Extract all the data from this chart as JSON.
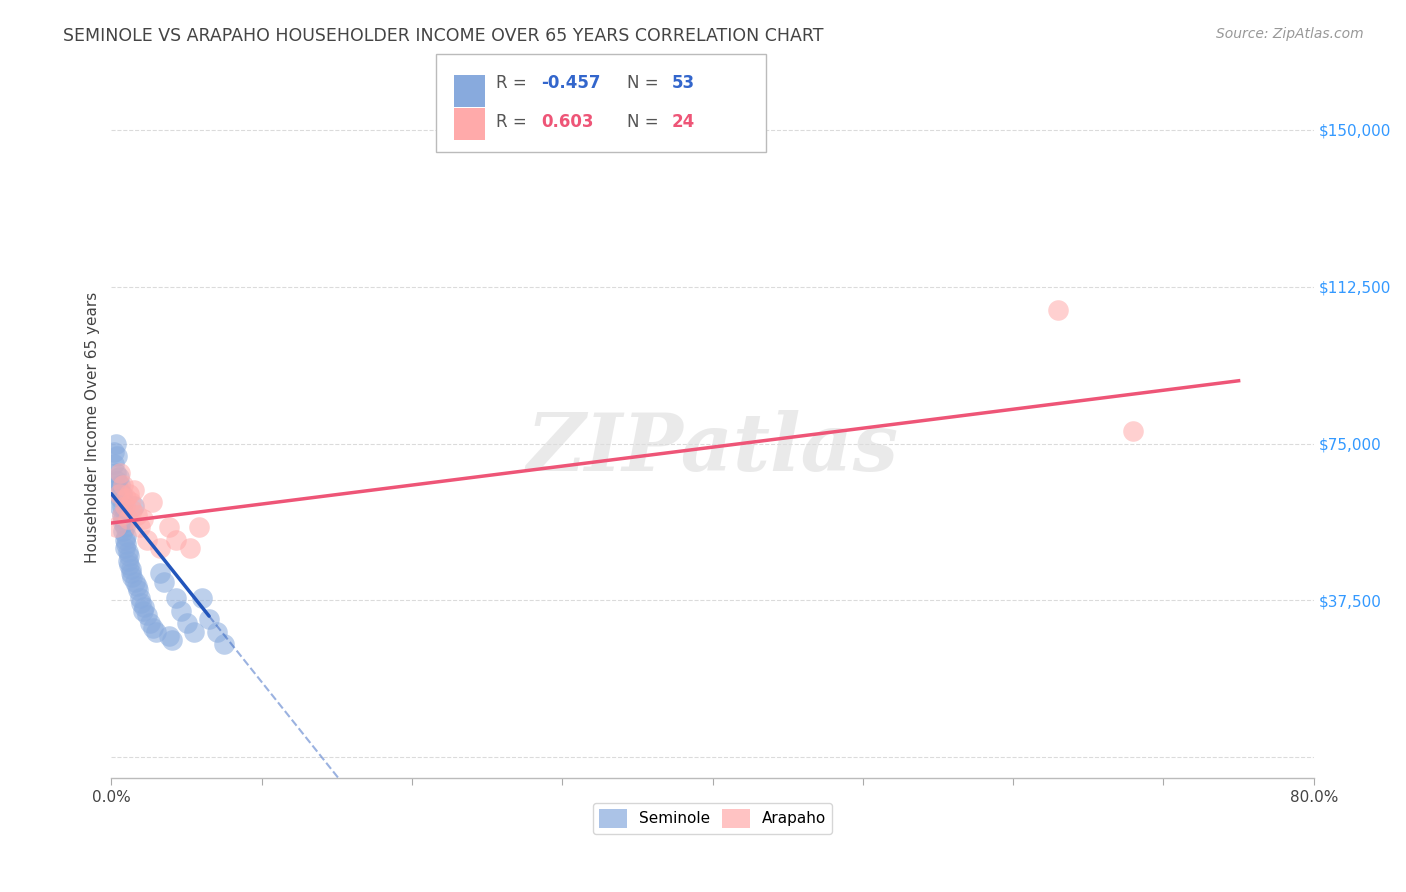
{
  "title": "SEMINOLE VS ARAPAHO HOUSEHOLDER INCOME OVER 65 YEARS CORRELATION CHART",
  "source": "Source: ZipAtlas.com",
  "ylabel": "Householder Income Over 65 years",
  "xlim": [
    0.0,
    0.8
  ],
  "ylim": [
    -5000,
    162500
  ],
  "yticks": [
    0,
    37500,
    75000,
    112500,
    150000
  ],
  "ytick_labels": [
    "",
    "$37,500",
    "$75,000",
    "$112,500",
    "$150,000"
  ],
  "xtick_positions": [
    0.0,
    0.1,
    0.2,
    0.3,
    0.4,
    0.5,
    0.6,
    0.7,
    0.8
  ],
  "seminole_R": -0.457,
  "seminole_N": 53,
  "arapaho_R": 0.603,
  "arapaho_N": 24,
  "seminole_color": "#88AADD",
  "arapaho_color": "#FFAAAA",
  "seminole_line_color": "#2255BB",
  "arapaho_line_color": "#EE5577",
  "background_color": "#FFFFFF",
  "grid_color": "#CCCCCC",
  "title_color": "#444444",
  "axis_label_color": "#444444",
  "ytick_color": "#3399FF",
  "watermark_color": "#DDDDDD",
  "watermark_text": "ZIPatlas",
  "legend_color_blue": "#3366CC",
  "legend_color_pink": "#EE5577",
  "seminole_x": [
    0.002,
    0.002,
    0.003,
    0.003,
    0.004,
    0.004,
    0.005,
    0.005,
    0.005,
    0.006,
    0.006,
    0.007,
    0.007,
    0.007,
    0.008,
    0.008,
    0.008,
    0.009,
    0.009,
    0.009,
    0.01,
    0.01,
    0.011,
    0.011,
    0.012,
    0.012,
    0.013,
    0.013,
    0.014,
    0.015,
    0.016,
    0.017,
    0.018,
    0.019,
    0.02,
    0.021,
    0.022,
    0.024,
    0.026,
    0.028,
    0.03,
    0.032,
    0.035,
    0.038,
    0.04,
    0.043,
    0.046,
    0.05,
    0.055,
    0.06,
    0.065,
    0.07,
    0.075
  ],
  "seminole_y": [
    70000,
    73000,
    75000,
    68000,
    66000,
    72000,
    64000,
    67000,
    60000,
    65000,
    62000,
    63000,
    58000,
    60000,
    56000,
    54000,
    57000,
    52000,
    55000,
    50000,
    51000,
    53000,
    49000,
    47000,
    48000,
    46000,
    44000,
    45000,
    43000,
    60000,
    42000,
    41000,
    40000,
    38000,
    37000,
    35000,
    36000,
    34000,
    32000,
    31000,
    30000,
    44000,
    42000,
    29000,
    28000,
    38000,
    35000,
    32000,
    30000,
    38000,
    33000,
    30000,
    27000
  ],
  "arapaho_x": [
    0.003,
    0.005,
    0.006,
    0.007,
    0.008,
    0.009,
    0.01,
    0.011,
    0.012,
    0.013,
    0.014,
    0.015,
    0.017,
    0.019,
    0.021,
    0.024,
    0.027,
    0.032,
    0.038,
    0.043,
    0.052,
    0.058,
    0.63,
    0.68
  ],
  "arapaho_y": [
    55000,
    63000,
    68000,
    58000,
    65000,
    60000,
    62000,
    57000,
    63000,
    61000,
    59000,
    64000,
    58000,
    55000,
    57000,
    52000,
    61000,
    50000,
    55000,
    52000,
    50000,
    55000,
    107000,
    78000
  ],
  "sem_line_x0": 0.0,
  "sem_line_x1": 0.065,
  "sem_line_x_dash_end": 0.8,
  "sem_line_y_intercept": 63000,
  "sem_line_slope": -450000,
  "ara_line_x0": 0.0,
  "ara_line_x1": 0.75,
  "ara_line_y0": 56000,
  "ara_line_y1": 90000
}
